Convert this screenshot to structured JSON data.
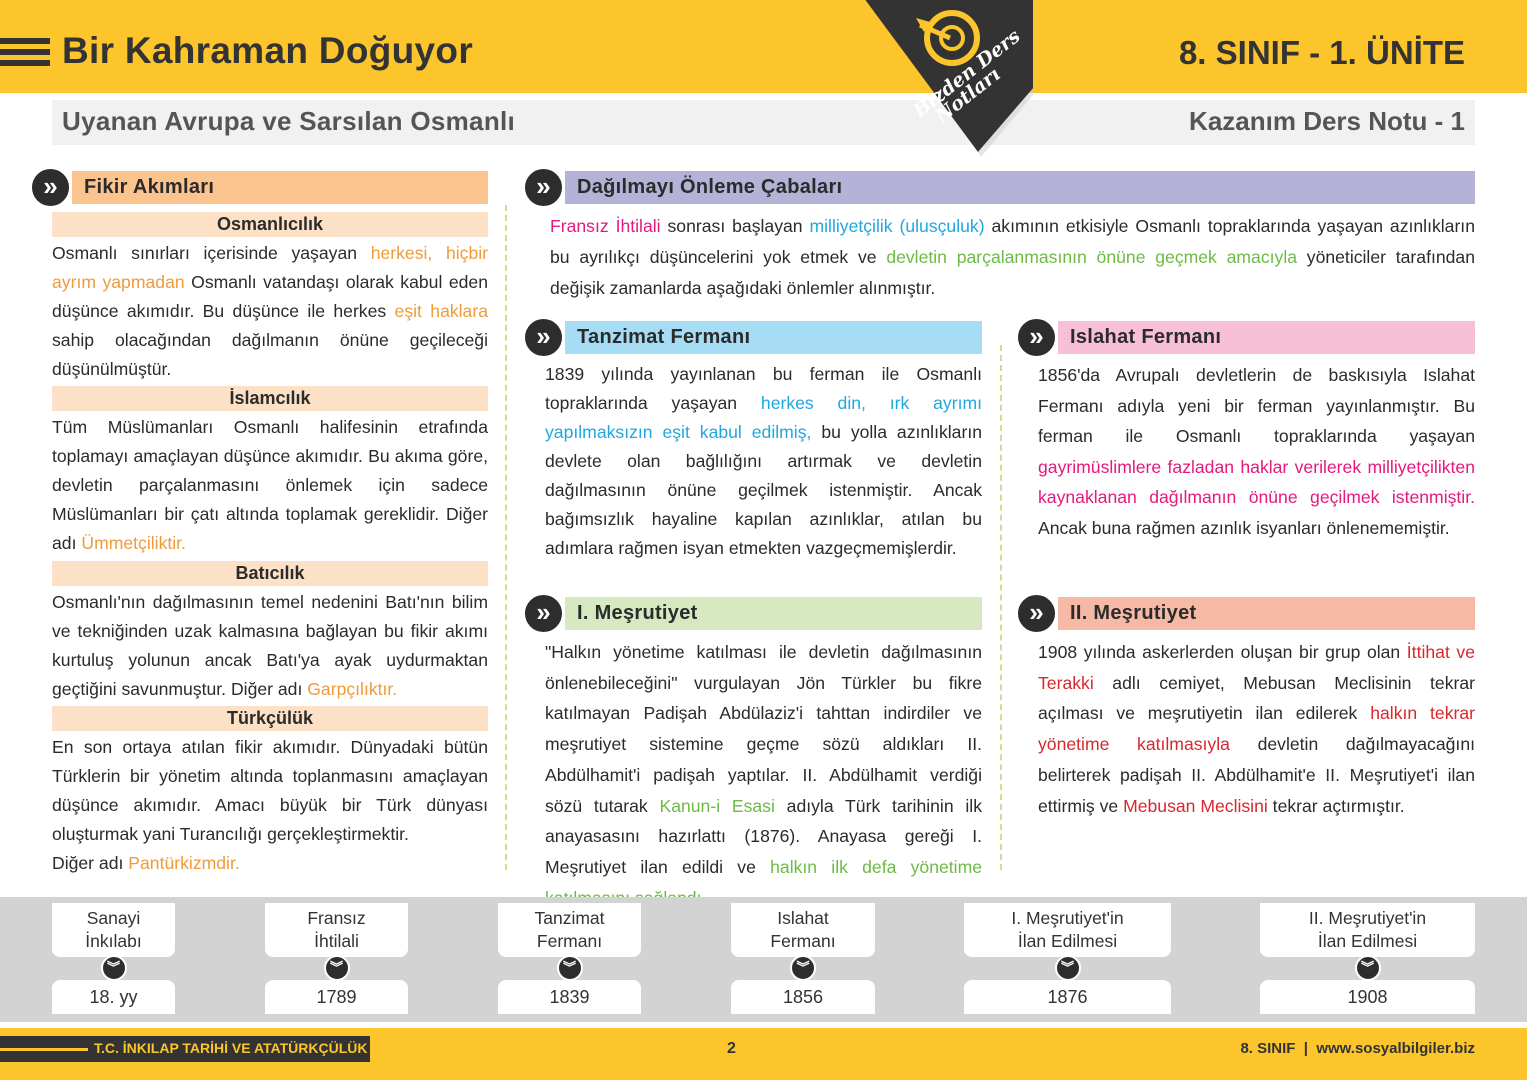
{
  "header": {
    "title": "Bir Kahraman Doğuyor",
    "unit": "8. SINIF - 1. ÜNİTE",
    "subtitle": "Uyanan Avrupa ve Sarsılan Osmanlı",
    "note": "Kazanım Ders Notu - 1",
    "logo_text": "Bizden Ders Notları"
  },
  "colors": {
    "yellow": "#fcc52c",
    "orange": "#ef9b3c",
    "pink": "#e5197e",
    "blue": "#1fa8de",
    "green": "#6dbb45",
    "red": "#d8272d"
  },
  "left": {
    "title": "Fikir Akımları",
    "sections": [
      {
        "title": "Osmanlıcılık",
        "body": [
          {
            "t": "Osmanlı sınırları içerisinde yaşayan "
          },
          {
            "t": "herkesi, hiçbir ayrım yapmadan",
            "c": "orange"
          },
          {
            "t": " Osmanlı vatandaşı olarak kabul eden düşünce akımıdır. Bu düşünce ile herkes "
          },
          {
            "t": "eşit haklara",
            "c": "orange"
          },
          {
            "t": " sahip olacağından dağılmanın önüne geçileceği düşünülmüştür."
          }
        ]
      },
      {
        "title": "İslamcılık",
        "body": [
          {
            "t": "Tüm Müslümanları Osmanlı halifesinin etrafında toplamayı amaçlayan düşünce akımıdır. Bu akıma göre, devletin parçalanmasını önlemek için sadece Müslümanları bir çatı altında toplamak gereklidir. Diğer adı "
          },
          {
            "t": "Ümmetçiliktir.",
            "c": "orange"
          }
        ]
      },
      {
        "title": "Batıcılık",
        "body": [
          {
            "t": "Osmanlı'nın dağılmasının temel nedenini Batı'nın bilim ve tekniğinden uzak kalmasına bağlayan bu fikir akımı kurtuluş yolunun ancak Batı'ya ayak uydurmaktan geçtiğini savunmuştur. Diğer adı "
          },
          {
            "t": "Garpçılıktır.",
            "c": "orange"
          }
        ]
      },
      {
        "title": "Türkçülük",
        "body": [
          {
            "t": "En son ortaya atılan fikir akımıdır. Dünyadaki bütün Türklerin bir yönetim altında toplanmasını amaçlayan düşünce akımıdır. Amacı büyük bir Türk dünyası oluşturmak yani Turancılığı gerçekleştirmektir."
          },
          {
            "t": "\nDiğer adı "
          },
          {
            "t": "Pantürkizmdir.",
            "c": "orange"
          }
        ]
      }
    ]
  },
  "intro": {
    "title": "Dağılmayı Önleme Çabaları",
    "body": [
      {
        "t": "Fransız İhtilali",
        "c": "pink"
      },
      {
        "t": " sonrası başlayan "
      },
      {
        "t": "milliyetçilik (ulusçuluk)",
        "c": "blue"
      },
      {
        "t": " akımının etkisiyle Osmanlı topraklarında yaşayan azınlıkların bu ayrılıkçı düşüncelerini yok etmek ve "
      },
      {
        "t": "devletin parçalanmasının önüne geçmek amacıyla",
        "c": "green"
      },
      {
        "t": " yöneticiler tarafından değişik zamanlarda aşağıdaki önlemler alınmıştır."
      }
    ]
  },
  "boxes": [
    {
      "title": "Tanzimat Fermanı",
      "body": [
        {
          "t": "1839 yılında yayınlanan bu ferman ile Osmanlı topraklarında yaşayan "
        },
        {
          "t": "herkes din, ırk ayrımı yapılmaksızın eşit kabul edilmiş,",
          "c": "blue"
        },
        {
          "t": " bu yolla azınlıkların devlete olan bağlılığını artırmak ve devletin dağılmasının önüne geçilmek istenmiştir. Ancak bağımsızlık hayaline kapılan azınlıklar, atılan bu adımlara rağmen isyan etmekten vazgeçmemişlerdir."
        }
      ]
    },
    {
      "title": "Islahat Fermanı",
      "body": [
        {
          "t": "1856'da Avrupalı devletlerin de baskısıyla Islahat Fermanı adıyla yeni bir ferman yayınlanmıştır. Bu ferman ile Osmanlı topraklarında yaşayan "
        },
        {
          "t": "gayrimüslimlere fazladan haklar verilerek milliyetçilikten kaynaklanan dağılmanın önüne geçilmek istenmiştir.",
          "c": "pink"
        },
        {
          "t": " Ancak buna rağmen azınlık isyanları önlenememiştir."
        }
      ]
    },
    {
      "title": "I. Meşrutiyet",
      "body": [
        {
          "t": "\"Halkın yönetime katılması ile devletin dağılmasının önlenebileceğini\" vurgulayan Jön Türkler bu fikre katılmayan Padişah Abdülaziz'i tahttan indirdiler ve meşrutiyet sistemine geçme sözü aldıkları II. Abdülhamit'i padişah yaptılar. II. Abdülhamit verdiği sözü tutarak "
        },
        {
          "t": "Kanun-i Esasi",
          "c": "green"
        },
        {
          "t": " adıyla Türk tarihinin ilk anayasasını hazırlattı (1876). Anayasa gereği I. Meşrutiyet ilan edildi ve "
        },
        {
          "t": "halkın ilk defa yönetime katılmasını sağlandı.",
          "c": "green"
        }
      ]
    },
    {
      "title": "II. Meşrutiyet",
      "body": [
        {
          "t": "1908 yılında askerlerden oluşan bir grup olan "
        },
        {
          "t": "İttihat ve Terakki",
          "c": "red"
        },
        {
          "t": " adlı cemiyet, Mebusan Meclisinin tekrar açılması ve meşrutiyetin ilan edilerek "
        },
        {
          "t": "halkın tekrar yönetime katılmasıyla",
          "c": "red"
        },
        {
          "t": " devletin dağılmayacağını belirterek padişah II. Abdülhamit'e II. Meşrutiyet'i ilan ettirmiş ve "
        },
        {
          "t": "Mebusan Meclisini",
          "c": "red"
        },
        {
          "t": " tekrar açtırmıştır."
        }
      ]
    }
  ],
  "timeline": [
    {
      "name": "Sanayi\nİnkılabı",
      "date": "18. yy"
    },
    {
      "name": "Fransız\nİhtilali",
      "date": "1789"
    },
    {
      "name": "Tanzimat\nFermanı",
      "date": "1839"
    },
    {
      "name": "Islahat\nFermanı",
      "date": "1856"
    },
    {
      "name": "I. Meşrutiyet'in\nİlan Edilmesi",
      "date": "1876"
    },
    {
      "name": "II. Meşrutiyet'in\nİlan Edilmesi",
      "date": "1908"
    }
  ],
  "footer": {
    "left": "T.C. İNKILAP TARİHİ VE ATATÜRKÇÜLÜK",
    "page": "2",
    "right": "8. SINIF  |  www.sosyalbilgiler.biz"
  }
}
